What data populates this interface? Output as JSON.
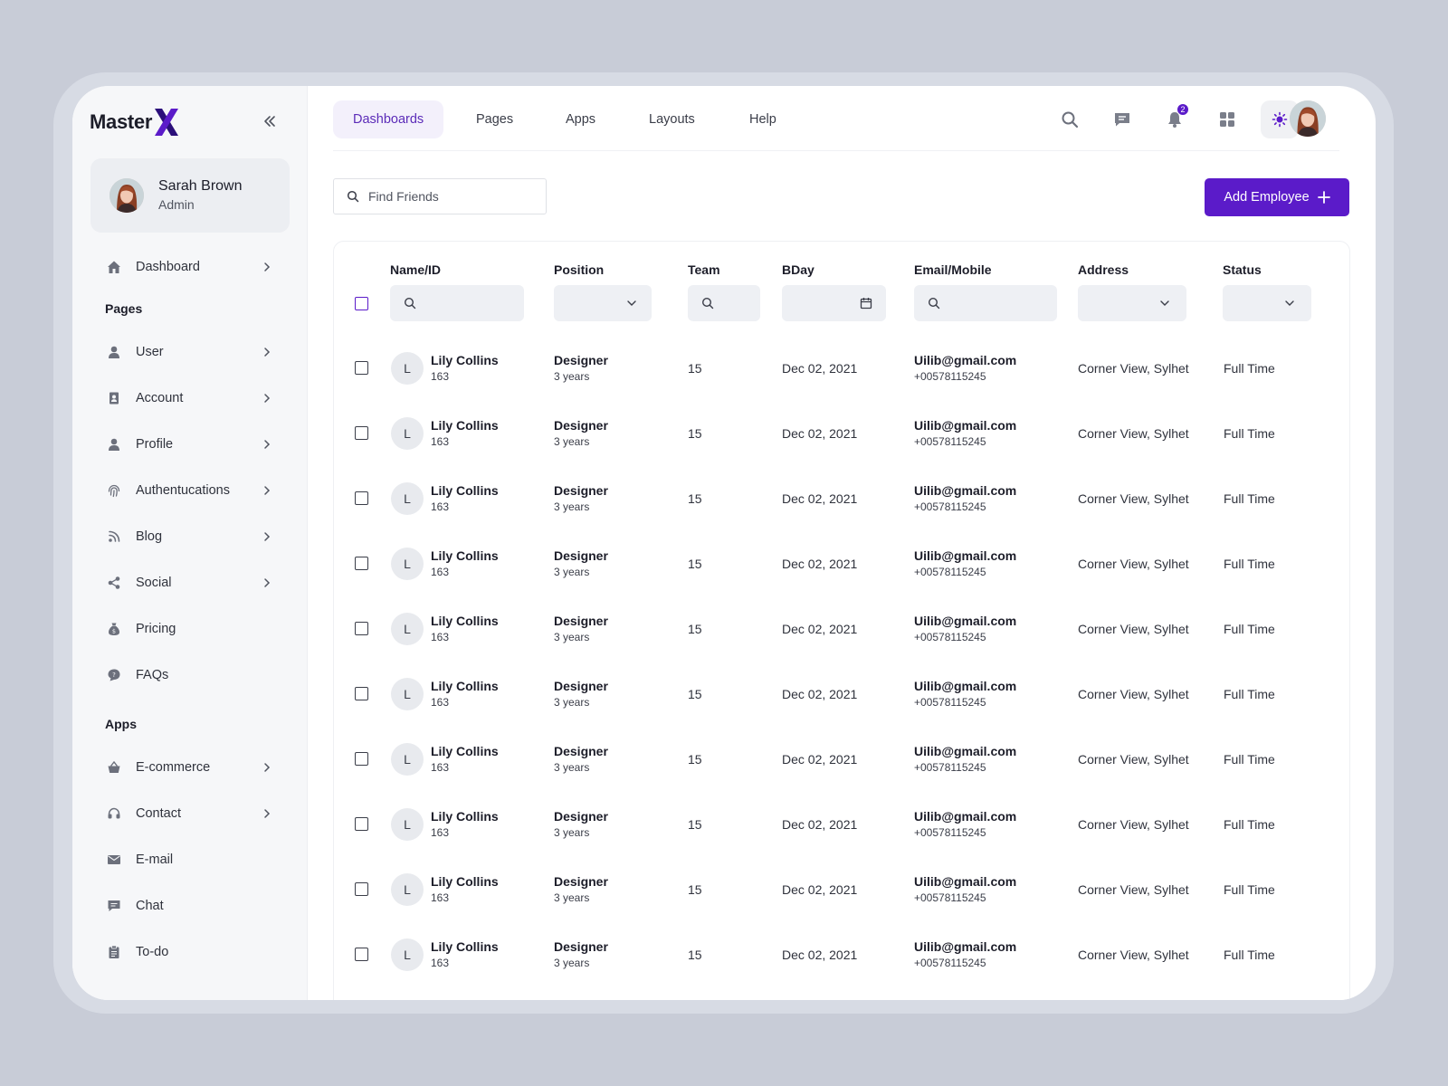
{
  "brand": {
    "name": "Master",
    "accent": "#5b1bc9"
  },
  "user": {
    "name": "Sarah Brown",
    "role": "Admin"
  },
  "sidebar": {
    "dashboard": "Dashboard",
    "pages_label": "Pages",
    "pages": [
      {
        "label": "User",
        "icon": "user-icon",
        "chevron": true
      },
      {
        "label": "Account",
        "icon": "account-icon",
        "chevron": true
      },
      {
        "label": "Profile",
        "icon": "profile-icon",
        "chevron": true
      },
      {
        "label": "Authentucations",
        "icon": "fingerprint-icon",
        "chevron": true
      },
      {
        "label": "Blog",
        "icon": "blog-icon",
        "chevron": true
      },
      {
        "label": "Social",
        "icon": "share-icon",
        "chevron": true
      },
      {
        "label": "Pricing",
        "icon": "money-bag-icon",
        "chevron": false
      },
      {
        "label": "FAQs",
        "icon": "faq-icon",
        "chevron": false
      }
    ],
    "apps_label": "Apps",
    "apps": [
      {
        "label": "E-commerce",
        "icon": "basket-icon",
        "chevron": true
      },
      {
        "label": "Contact",
        "icon": "headset-icon",
        "chevron": true
      },
      {
        "label": "E-mail",
        "icon": "mail-icon",
        "chevron": false
      },
      {
        "label": "Chat",
        "icon": "chat-icon",
        "chevron": false
      },
      {
        "label": "To-do",
        "icon": "clipboard-icon",
        "chevron": false
      }
    ]
  },
  "topnav": {
    "tabs": [
      "Dashboards",
      "Pages",
      "Apps",
      "Layouts",
      "Help"
    ],
    "active_tab": "Dashboards",
    "notification_count": "2"
  },
  "search": {
    "placeholder": "Find Friends"
  },
  "add_button": "Add Employee",
  "table": {
    "columns": [
      "Name/ID",
      "Position",
      "Team",
      "BDay",
      "Email/Mobile",
      "Address",
      "Status"
    ],
    "rows": [
      {
        "initial": "L",
        "name": "Lily Collins",
        "id": "163",
        "position": "Designer",
        "tenure": "3 years",
        "team": "15",
        "bday": "Dec 02, 2021",
        "email": "Uilib@gmail.com",
        "mobile": "+00578115245",
        "address": "Corner View, Sylhet",
        "status": "Full Time"
      },
      {
        "initial": "L",
        "name": "Lily Collins",
        "id": "163",
        "position": "Designer",
        "tenure": "3 years",
        "team": "15",
        "bday": "Dec 02, 2021",
        "email": "Uilib@gmail.com",
        "mobile": "+00578115245",
        "address": "Corner View, Sylhet",
        "status": "Full Time"
      },
      {
        "initial": "L",
        "name": "Lily Collins",
        "id": "163",
        "position": "Designer",
        "tenure": "3 years",
        "team": "15",
        "bday": "Dec 02, 2021",
        "email": "Uilib@gmail.com",
        "mobile": "+00578115245",
        "address": "Corner View, Sylhet",
        "status": "Full Time"
      },
      {
        "initial": "L",
        "name": "Lily Collins",
        "id": "163",
        "position": "Designer",
        "tenure": "3 years",
        "team": "15",
        "bday": "Dec 02, 2021",
        "email": "Uilib@gmail.com",
        "mobile": "+00578115245",
        "address": "Corner View, Sylhet",
        "status": "Full Time"
      },
      {
        "initial": "L",
        "name": "Lily Collins",
        "id": "163",
        "position": "Designer",
        "tenure": "3 years",
        "team": "15",
        "bday": "Dec 02, 2021",
        "email": "Uilib@gmail.com",
        "mobile": "+00578115245",
        "address": "Corner View, Sylhet",
        "status": "Full Time"
      },
      {
        "initial": "L",
        "name": "Lily Collins",
        "id": "163",
        "position": "Designer",
        "tenure": "3 years",
        "team": "15",
        "bday": "Dec 02, 2021",
        "email": "Uilib@gmail.com",
        "mobile": "+00578115245",
        "address": "Corner View, Sylhet",
        "status": "Full Time"
      },
      {
        "initial": "L",
        "name": "Lily Collins",
        "id": "163",
        "position": "Designer",
        "tenure": "3 years",
        "team": "15",
        "bday": "Dec 02, 2021",
        "email": "Uilib@gmail.com",
        "mobile": "+00578115245",
        "address": "Corner View, Sylhet",
        "status": "Full Time"
      },
      {
        "initial": "L",
        "name": "Lily Collins",
        "id": "163",
        "position": "Designer",
        "tenure": "3 years",
        "team": "15",
        "bday": "Dec 02, 2021",
        "email": "Uilib@gmail.com",
        "mobile": "+00578115245",
        "address": "Corner View, Sylhet",
        "status": "Full Time"
      },
      {
        "initial": "L",
        "name": "Lily Collins",
        "id": "163",
        "position": "Designer",
        "tenure": "3 years",
        "team": "15",
        "bday": "Dec 02, 2021",
        "email": "Uilib@gmail.com",
        "mobile": "+00578115245",
        "address": "Corner View, Sylhet",
        "status": "Full Time"
      },
      {
        "initial": "L",
        "name": "Lily Collins",
        "id": "163",
        "position": "Designer",
        "tenure": "3 years",
        "team": "15",
        "bday": "Dec 02, 2021",
        "email": "Uilib@gmail.com",
        "mobile": "+00578115245",
        "address": "Corner View, Sylhet",
        "status": "Full Time"
      }
    ]
  }
}
